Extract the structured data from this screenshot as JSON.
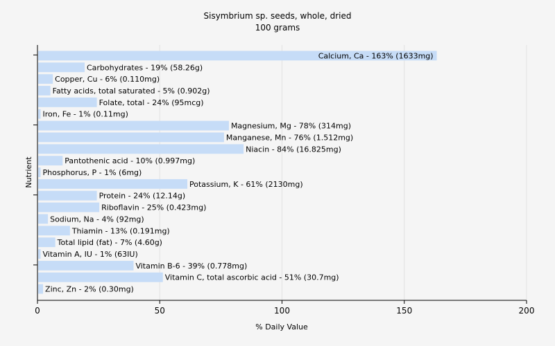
{
  "chart_data": {
    "type": "bar",
    "orientation": "horizontal",
    "title": "Sisymbrium sp. seeds, whole, dried",
    "subtitle": "100 grams",
    "xlabel": "% Daily Value",
    "ylabel": "Nutrient",
    "xlim": [
      0,
      200
    ],
    "xticks": [
      0,
      50,
      100,
      150,
      200
    ],
    "grid": true,
    "categories": [
      "Calcium, Ca",
      "Carbohydrates",
      "Copper, Cu",
      "Fatty acids, total saturated",
      "Folate, total",
      "Iron, Fe",
      "Magnesium, Mg",
      "Manganese, Mn",
      "Niacin",
      "Pantothenic acid",
      "Phosphorus, P",
      "Potassium, K",
      "Protein",
      "Riboflavin",
      "Sodium, Na",
      "Thiamin",
      "Total lipid (fat)",
      "Vitamin A, IU",
      "Vitamin B-6",
      "Vitamin C, total ascorbic acid",
      "Zinc, Zn"
    ],
    "values": [
      163,
      19,
      6,
      5,
      24,
      1,
      78,
      76,
      84,
      10,
      1,
      61,
      24,
      25,
      4,
      13,
      7,
      1,
      39,
      51,
      2
    ],
    "labels": [
      "Calcium, Ca - 163% (1633mg)",
      "Carbohydrates - 19% (58.26g)",
      "Copper, Cu - 6% (0.110mg)",
      "Fatty acids, total saturated - 5% (0.902g)",
      "Folate, total - 24% (95mcg)",
      "Iron, Fe - 1% (0.11mg)",
      "Magnesium, Mg - 78% (314mg)",
      "Manganese, Mn - 76% (1.512mg)",
      "Niacin - 84% (16.825mg)",
      "Pantothenic acid - 10% (0.997mg)",
      "Phosphorus, P - 1% (6mg)",
      "Potassium, K - 61% (2130mg)",
      "Protein - 24% (12.14g)",
      "Riboflavin - 25% (0.423mg)",
      "Sodium, Na - 4% (92mg)",
      "Thiamin - 13% (0.191mg)",
      "Total lipid (fat) - 7% (4.60g)",
      "Vitamin A, IU - 1% (63IU)",
      "Vitamin B-6 - 39% (0.778mg)",
      "Vitamin C, total ascorbic acid - 51% (30.7mg)",
      "Zinc, Zn - 2% (0.30mg)"
    ],
    "bar_color": "#c6dcf7"
  }
}
